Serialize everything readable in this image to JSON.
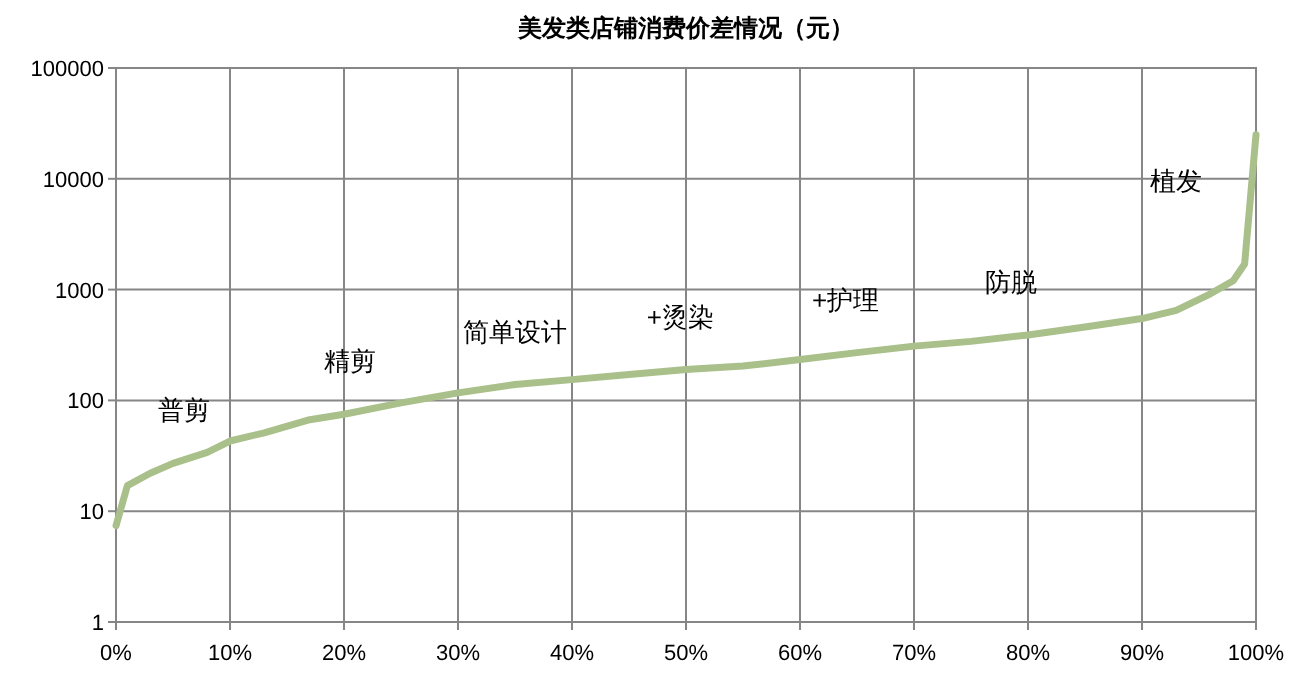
{
  "chart_data": {
    "type": "line",
    "title": "美发类店铺消费价差情况（元）",
    "log": "y",
    "grid": true,
    "marker": "none",
    "line_style": "solid",
    "xlim": [
      0,
      100
    ],
    "ylim": [
      1,
      100000
    ],
    "xticks": [
      {
        "value": 0,
        "label": "0%"
      },
      {
        "value": 10,
        "label": "10%"
      },
      {
        "value": 20,
        "label": "20%"
      },
      {
        "value": 30,
        "label": "30%"
      },
      {
        "value": 40,
        "label": "40%"
      },
      {
        "value": 50,
        "label": "50%"
      },
      {
        "value": 60,
        "label": "60%"
      },
      {
        "value": 70,
        "label": "70%"
      },
      {
        "value": 80,
        "label": "80%"
      },
      {
        "value": 90,
        "label": "90%"
      },
      {
        "value": 100,
        "label": "100%"
      }
    ],
    "yticks": [
      1,
      10,
      100,
      1000,
      10000,
      100000
    ],
    "series": [
      {
        "color": "#a9c08a",
        "x": [
          0,
          1,
          3,
          5,
          8,
          10,
          13,
          17,
          20,
          25,
          30,
          35,
          40,
          45,
          50,
          55,
          60,
          65,
          70,
          75,
          80,
          85,
          90,
          93,
          96,
          98,
          99,
          100
        ],
        "values": [
          7.4,
          17,
          22,
          27,
          34,
          43,
          51,
          67,
          75,
          95,
          117,
          139,
          154,
          171,
          190,
          204,
          234,
          270,
          309,
          341,
          390,
          460,
          548,
          650,
          916,
          1200,
          1700,
          25000
        ]
      }
    ],
    "annotations": [
      "普剪",
      "精剪",
      "简单设计",
      "+烫染",
      "+护理",
      "防脱",
      "植发"
    ]
  }
}
